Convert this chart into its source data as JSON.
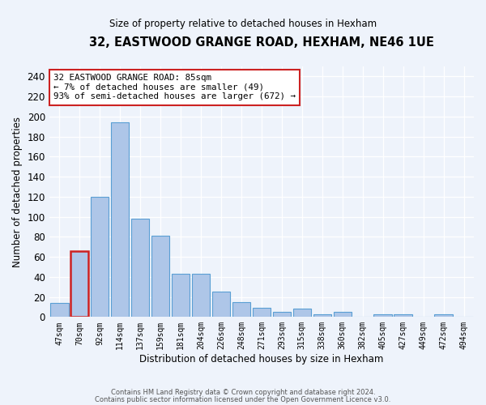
{
  "title1": "32, EASTWOOD GRANGE ROAD, HEXHAM, NE46 1UE",
  "title2": "Size of property relative to detached houses in Hexham",
  "xlabel": "Distribution of detached houses by size in Hexham",
  "ylabel": "Number of detached properties",
  "categories": [
    "47sqm",
    "70sqm",
    "92sqm",
    "114sqm",
    "137sqm",
    "159sqm",
    "181sqm",
    "204sqm",
    "226sqm",
    "248sqm",
    "271sqm",
    "293sqm",
    "315sqm",
    "338sqm",
    "360sqm",
    "382sqm",
    "405sqm",
    "427sqm",
    "449sqm",
    "472sqm",
    "494sqm"
  ],
  "values": [
    14,
    66,
    120,
    194,
    98,
    81,
    43,
    43,
    25,
    15,
    9,
    5,
    8,
    3,
    5,
    0,
    3,
    3,
    0,
    3,
    0
  ],
  "bar_color": "#aec6e8",
  "bar_edge_color": "#5a9fd4",
  "highlight_bar_index": 1,
  "highlight_bar_edge_color": "#cc2222",
  "annotation_line1": "32 EASTWOOD GRANGE ROAD: 85sqm",
  "annotation_line2": "← 7% of detached houses are smaller (49)",
  "annotation_line3": "93% of semi-detached houses are larger (672) →",
  "annotation_box_edge_color": "#cc2222",
  "ylim": [
    0,
    250
  ],
  "yticks": [
    0,
    20,
    40,
    60,
    80,
    100,
    120,
    140,
    160,
    180,
    200,
    220,
    240
  ],
  "footer1": "Contains HM Land Registry data © Crown copyright and database right 2024.",
  "footer2": "Contains public sector information licensed under the Open Government Licence v3.0.",
  "bg_color": "#eef3fb"
}
